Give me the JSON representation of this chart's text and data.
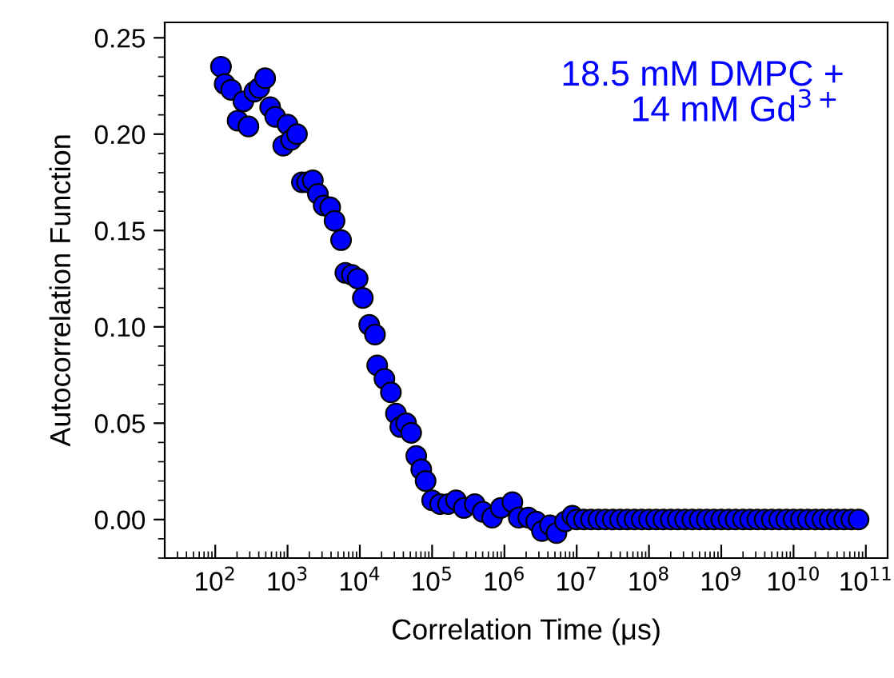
{
  "chart_data": {
    "type": "scatter",
    "xlabel": "Correlation Time (μs)",
    "ylabel": "Autocorrelation Function",
    "annotations": [
      "18.5 mM DMPC +\n14 mM Gd$^{3+}$"
    ],
    "log": "x",
    "marker": "circle",
    "xlim": [
      20,
      200000000000.0
    ],
    "ylim": [
      -0.02,
      0.258
    ],
    "xticks": [
      {
        "value": 100,
        "label": "10$^{2}$"
      },
      {
        "value": 1000,
        "label": "10$^{3}$"
      },
      {
        "value": 10000,
        "label": "10$^{4}$"
      },
      {
        "value": 100000,
        "label": "10$^{5}$"
      },
      {
        "value": 1000000,
        "label": "10$^{6}$"
      },
      {
        "value": 10000000,
        "label": "10$^{7}$"
      },
      {
        "value": 100000000,
        "label": "10$^{8}$"
      },
      {
        "value": 1000000000,
        "label": "10$^{9}$"
      },
      {
        "value": 10000000000,
        "label": "10$^{10}$"
      },
      {
        "value": 100000000000,
        "label": "10$^{11}$"
      }
    ],
    "yticks": [
      {
        "value": 0,
        "label": "0.00"
      },
      {
        "value": 0.05,
        "label": "0.05"
      },
      {
        "value": 0.1,
        "label": "0.10"
      },
      {
        "value": 0.15,
        "label": "0.15"
      },
      {
        "value": 0.2,
        "label": "0.20"
      },
      {
        "value": 0.25,
        "label": "0.25"
      }
    ],
    "series": [
      {
        "color": "#0000ff",
        "x": [
          120,
          135,
          166,
          204,
          245,
          288,
          347,
          407,
          490,
          575,
          676,
          871,
          1000,
          1120,
          1350,
          1580,
          1860,
          2240,
          2630,
          3160,
          3890,
          4470,
          5500,
          6310,
          7760,
          9330,
          11000,
          13500,
          16200,
          17400,
          21900,
          26900,
          31600,
          36300,
          43700,
          51300,
          60300,
          70800,
          81300,
          100000,
          129000,
          166000,
          214000,
          275000,
          389000,
          501000,
          676000,
          891000,
          1290000,
          1580000,
          2140000,
          2750000,
          3310000,
          4270000,
          5250000,
          6920000,
          8710000,
          10000000.0,
          12600000.0,
          15800000.0,
          20000000.0,
          25100000.0,
          31600000.0,
          39800000.0,
          50100000.0,
          63100000.0,
          79400000.0,
          100000000.0,
          126000000.0,
          158000000.0,
          200000000.0,
          251000000.0,
          316000000.0,
          398000000.0,
          501000000.0,
          631000000.0,
          794000000.0,
          1000000000.0,
          1260000000.0,
          1580000000.0,
          2000000000.0,
          2510000000.0,
          3160000000.0,
          3980000000.0,
          5010000000.0,
          6310000000.0,
          7940000000.0,
          10000000000.0,
          12600000000.0,
          15800000000.0,
          20000000000.0,
          25100000000.0,
          31600000000.0,
          39800000000.0,
          50100000000.0,
          63100000000.0,
          79400000000.0
        ],
        "values": [
          0.235,
          0.226,
          0.223,
          0.207,
          0.217,
          0.204,
          0.222,
          0.224,
          0.229,
          0.214,
          0.209,
          0.194,
          0.205,
          0.197,
          0.2,
          0.175,
          0.175,
          0.176,
          0.169,
          0.163,
          0.162,
          0.155,
          0.145,
          0.128,
          0.127,
          0.125,
          0.115,
          0.101,
          0.096,
          0.08,
          0.073,
          0.066,
          0.055,
          0.048,
          0.05,
          0.045,
          0.033,
          0.026,
          0.02,
          0.01,
          0.008,
          0.008,
          0.01,
          0.006,
          0.008,
          0.004,
          0.001,
          0.006,
          0.009,
          0.001,
          0.001,
          -0.001,
          -0.006,
          -0.003,
          -0.007,
          -0.001,
          0.002,
          0.0,
          0.0,
          0.0,
          0.0,
          0.0,
          0.0,
          0.0,
          0.0,
          0.0,
          0.0,
          0.0,
          0.0,
          0.0,
          0.0,
          0.0,
          0.0,
          0.0,
          0.0,
          0.0,
          0.0,
          0.0,
          0.0,
          0.0,
          0.0,
          0.0,
          0.0,
          0.0,
          0.0,
          0.0,
          0.0,
          0.0,
          0.0,
          0.0,
          0.0,
          0.0,
          0.0,
          0.0,
          0.0,
          0.0,
          0.0
        ]
      }
    ]
  }
}
